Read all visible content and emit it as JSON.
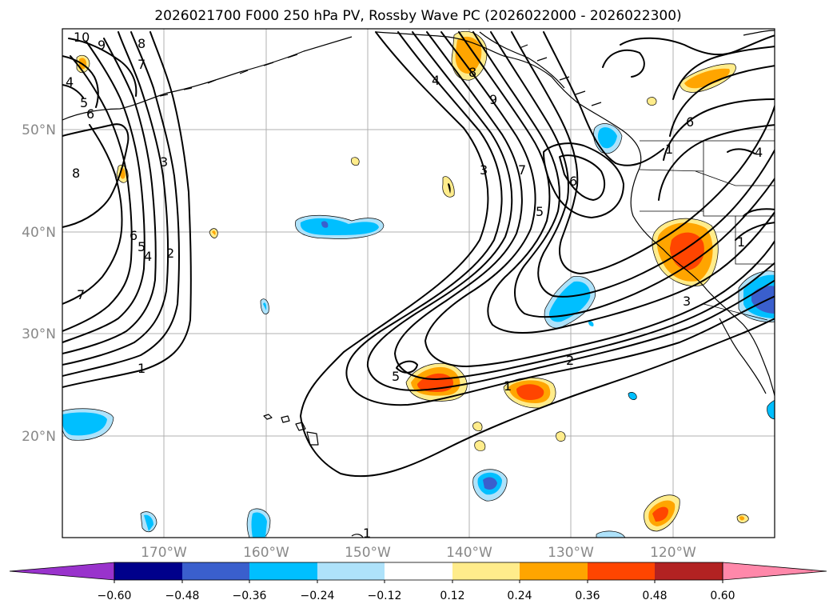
{
  "title": "2026021700 F000 250 hPa PV, Rossby Wave PC (2026022000 - 2026022300)",
  "map": {
    "lat_labels": [
      "50°N",
      "40°N",
      "30°N",
      "20°N"
    ],
    "lon_labels": [
      "170°W",
      "160°W",
      "150°W",
      "140°W",
      "130°W",
      "120°W"
    ],
    "extent": {
      "lon_min": -180,
      "lon_max": -110,
      "lat_min": 10,
      "lat_max": 60
    }
  },
  "contour_labels": [
    {
      "id": "c1",
      "text": "10"
    },
    {
      "id": "c2",
      "text": "9"
    },
    {
      "id": "c3",
      "text": "8"
    },
    {
      "id": "c4",
      "text": "7"
    },
    {
      "id": "c5",
      "text": "4"
    },
    {
      "id": "c6",
      "text": "5"
    },
    {
      "id": "c7",
      "text": "6"
    },
    {
      "id": "c8",
      "text": "8"
    },
    {
      "id": "c9",
      "text": "3"
    },
    {
      "id": "c10",
      "text": "6"
    },
    {
      "id": "c11",
      "text": "5"
    },
    {
      "id": "c12",
      "text": "4"
    },
    {
      "id": "c13",
      "text": "2"
    },
    {
      "id": "c14",
      "text": "7"
    },
    {
      "id": "c15",
      "text": "1"
    },
    {
      "id": "c16",
      "text": "4"
    },
    {
      "id": "c17",
      "text": "8"
    },
    {
      "id": "c18",
      "text": "9"
    },
    {
      "id": "c19",
      "text": "3"
    },
    {
      "id": "c20",
      "text": "7"
    },
    {
      "id": "c21",
      "text": "6"
    },
    {
      "id": "c22",
      "text": "5"
    },
    {
      "id": "c23",
      "text": "5"
    },
    {
      "id": "c24",
      "text": "1"
    },
    {
      "id": "c25",
      "text": "2"
    },
    {
      "id": "c26",
      "text": "6"
    },
    {
      "id": "c27",
      "text": "1"
    },
    {
      "id": "c28",
      "text": "4"
    },
    {
      "id": "c29",
      "text": "1"
    },
    {
      "id": "c30",
      "text": "3"
    },
    {
      "id": "c31",
      "text": "1"
    }
  ],
  "colorbar": {
    "ticks": [
      "−0.60",
      "−0.48",
      "−0.36",
      "−0.24",
      "−0.12",
      "0.12",
      "0.24",
      "0.36",
      "0.48",
      "0.60"
    ],
    "colors": [
      "#9933cc",
      "#00008b",
      "#3a5fcd",
      "#00bfff",
      "#aee2fa",
      "#ffffff",
      "#ffec8b",
      "#ffa500",
      "#ff4500",
      "#b22222",
      "#ff88aa"
    ]
  }
}
